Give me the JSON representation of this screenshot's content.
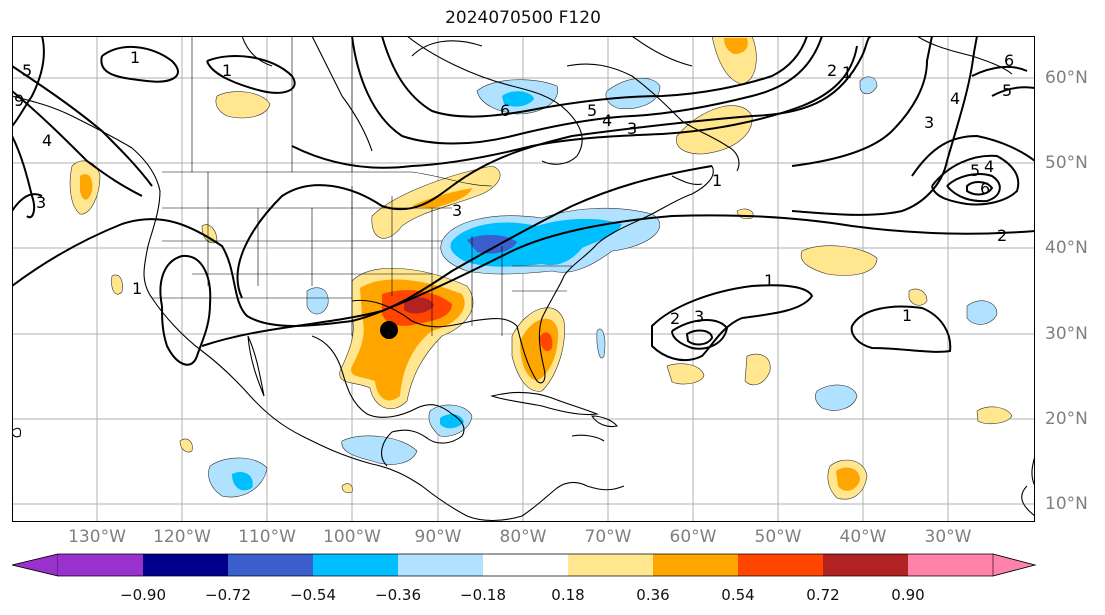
{
  "title": "2024070500 F120",
  "axes": {
    "lon_labels": [
      "130°W",
      "120°W",
      "110°W",
      "100°W",
      "90°W",
      "80°W",
      "70°W",
      "60°W",
      "50°W",
      "40°W",
      "30°W"
    ],
    "lat_labels": [
      "60°N",
      "50°N",
      "40°N",
      "30°N",
      "20°N",
      "10°N"
    ]
  },
  "colorbar": {
    "ticks": [
      "−0.90",
      "−0.72",
      "−0.54",
      "−0.36",
      "−0.18",
      "0.18",
      "0.36",
      "0.54",
      "0.72",
      "0.90"
    ],
    "colors": [
      "#9932cc",
      "#00008b",
      "#3a5fcd",
      "#00bfff",
      "#b0e2ff",
      "#ffffff",
      "#ffe68f",
      "#ffa500",
      "#ff4500",
      "#b22222",
      "#ff82ab"
    ]
  },
  "contour_labels": [
    "1",
    "1",
    "2",
    "3",
    "4",
    "5",
    "6",
    "1",
    "2",
    "3",
    "4",
    "5",
    "6",
    "1",
    "2",
    "3",
    "2",
    "1",
    "1",
    "2",
    "3",
    "4",
    "5",
    "6",
    "3",
    "4",
    "5",
    "4",
    "6",
    "5",
    "1",
    "3",
    "1"
  ],
  "marker": "storm-center"
}
